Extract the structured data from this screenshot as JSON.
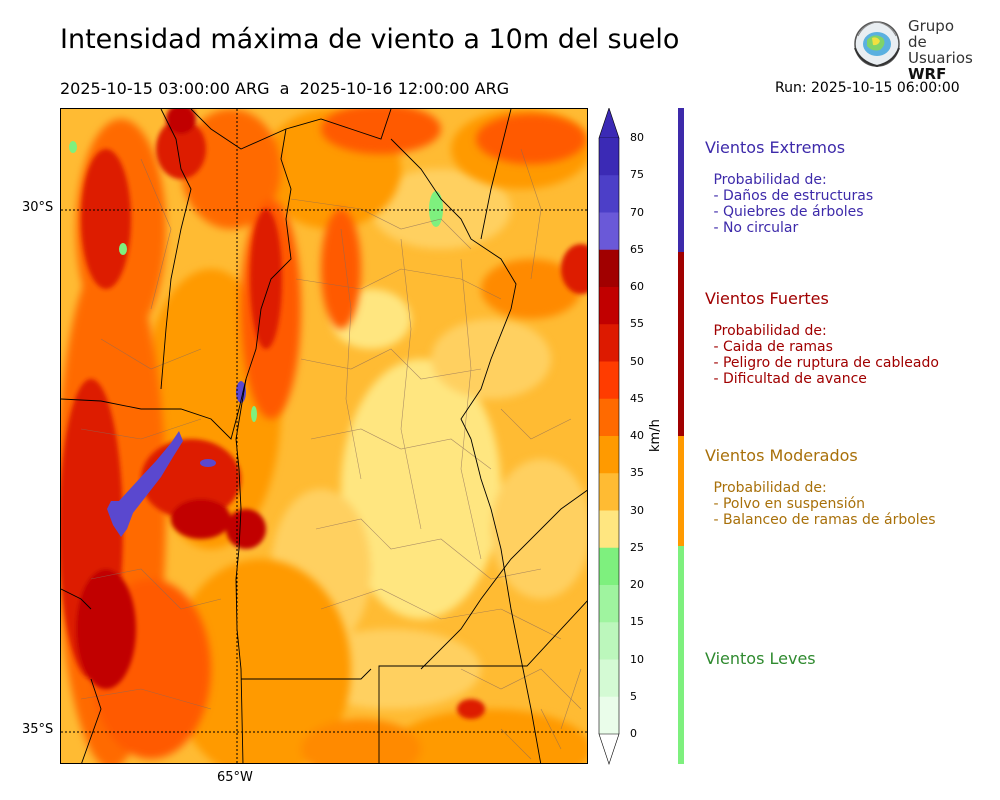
{
  "header": {
    "title": "Intensidad máxima de viento a 10m del suelo",
    "period": "2025-10-15 03:00:00 ARG  a  2025-10-16 12:00:00 ARG",
    "run": "Run: 2025-10-15 06:00:00"
  },
  "logo": {
    "line1": "Grupo de",
    "line2": "Usuarios",
    "line3": "WRF",
    "icon": "globe-logo-icon"
  },
  "map": {
    "lat_labels": [
      "30°S",
      "35°S"
    ],
    "lon_labels": [
      "65°W"
    ]
  },
  "colorbar": {
    "unit": "km/h",
    "ticks": [
      "80",
      "75",
      "70",
      "65",
      "60",
      "55",
      "50",
      "45",
      "40",
      "35",
      "30",
      "25",
      "20",
      "15",
      "10",
      "5",
      "0"
    ],
    "colors": [
      "#3b2ab5",
      "#4c3fc8",
      "#6a59d8",
      "#a10000",
      "#c10000",
      "#dd1a00",
      "#ff3c00",
      "#ff6a00",
      "#ff9a00",
      "#ffbb33",
      "#ffe680",
      "#7ef07e",
      "#9ff49f",
      "#bcf7bc",
      "#d4fad4",
      "#eafdea"
    ]
  },
  "categories": [
    {
      "title": "Vientos Extremos",
      "color": "#3d2aaa",
      "desc": " Probabilidad de:\n - Daños de estructuras\n - Quiebres de árboles\n - No circular"
    },
    {
      "title": "Vientos Fuertes",
      "color": "#a00000",
      "desc": " Probabilidad de:\n - Caida de ramas\n - Peligro de ruptura de cableado\n - Dificultad de avance"
    },
    {
      "title": "Vientos Moderados",
      "color": "#a8700a",
      "desc": " Probabilidad de:\n - Polvo en suspensión\n - Balanceo de ramas de árboles"
    },
    {
      "title": "Vientos Leves",
      "color": "#2f8a2f",
      "desc": ""
    }
  ]
}
